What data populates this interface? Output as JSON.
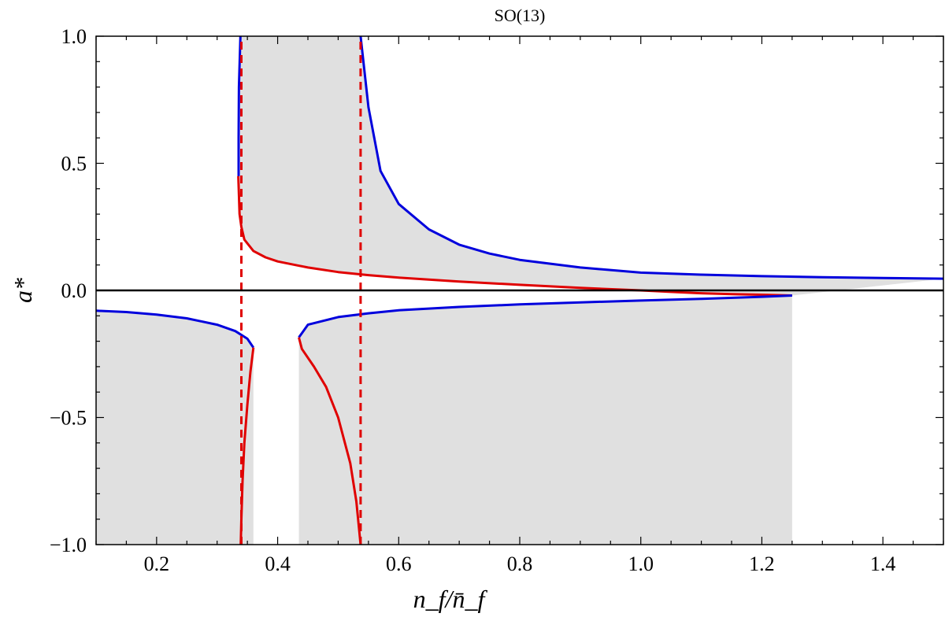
{
  "chart_data": {
    "type": "line",
    "title": "SO(13)",
    "xlabel": "n_f/n̄_f",
    "ylabel": "a*",
    "xlim": [
      0.1,
      1.5
    ],
    "ylim": [
      -1.0,
      1.0
    ],
    "x_ticks": [
      {
        "value": 0.2,
        "label": "0.2"
      },
      {
        "value": 0.4,
        "label": "0.4"
      },
      {
        "value": 0.6,
        "label": "0.6"
      },
      {
        "value": 0.8,
        "label": "0.8"
      },
      {
        "value": 1.0,
        "label": "1.0"
      },
      {
        "value": 1.2,
        "label": "1.2"
      },
      {
        "value": 1.4,
        "label": "1.4"
      }
    ],
    "y_ticks": [
      {
        "value": 1.0,
        "label": "1.0"
      },
      {
        "value": 0.5,
        "label": "0.5"
      },
      {
        "value": 0.0,
        "label": "0.0"
      },
      {
        "value": -0.5,
        "label": "−0.5"
      },
      {
        "value": -1.0,
        "label": "−1.0"
      }
    ],
    "grid": false,
    "colors": {
      "blue": "#0000dd",
      "red": "#e00000",
      "shade": "#e0e0e0"
    },
    "shaded_regions": [
      {
        "name": "upper-band",
        "upper": "blue-upper",
        "lower": "red-upper"
      },
      {
        "name": "lower-left",
        "upper": "blue-lower-left",
        "lower": "frame-bottom"
      },
      {
        "name": "lower-right",
        "upper": "blue-lower-right",
        "lower": "frame-bottom"
      }
    ],
    "series": [
      {
        "id": "blue-upper",
        "color": "blue",
        "style": "solid",
        "points": [
          [
            0.537,
            1.0
          ],
          [
            0.55,
            0.72
          ],
          [
            0.57,
            0.47
          ],
          [
            0.6,
            0.34
          ],
          [
            0.65,
            0.24
          ],
          [
            0.7,
            0.18
          ],
          [
            0.75,
            0.145
          ],
          [
            0.8,
            0.12
          ],
          [
            0.9,
            0.09
          ],
          [
            1.0,
            0.07
          ],
          [
            1.1,
            0.062
          ],
          [
            1.2,
            0.056
          ],
          [
            1.3,
            0.052
          ],
          [
            1.4,
            0.049
          ],
          [
            1.5,
            0.046
          ]
        ]
      },
      {
        "id": "red-upper",
        "color": "red",
        "style": "solid",
        "points": [
          [
            0.335,
            0.45
          ],
          [
            0.337,
            0.3
          ],
          [
            0.34,
            0.25
          ],
          [
            0.345,
            0.2
          ],
          [
            0.36,
            0.155
          ],
          [
            0.38,
            0.13
          ],
          [
            0.4,
            0.114
          ],
          [
            0.45,
            0.09
          ],
          [
            0.5,
            0.072
          ],
          [
            0.55,
            0.06
          ],
          [
            0.6,
            0.05
          ],
          [
            0.7,
            0.035
          ],
          [
            0.8,
            0.022
          ],
          [
            0.9,
            0.01
          ],
          [
            1.0,
            0.0
          ],
          [
            1.05,
            -0.006
          ],
          [
            1.1,
            -0.011
          ],
          [
            1.15,
            -0.015
          ],
          [
            1.2,
            -0.017
          ],
          [
            1.25,
            -0.02
          ]
        ]
      },
      {
        "id": "blue-upper-left",
        "color": "blue",
        "style": "solid",
        "points": [
          [
            0.3385,
            1.0
          ],
          [
            0.336,
            0.8
          ],
          [
            0.3355,
            0.6
          ],
          [
            0.3355,
            0.45
          ]
        ]
      },
      {
        "id": "blue-lower-left",
        "color": "blue",
        "style": "solid",
        "points": [
          [
            0.1,
            -0.08
          ],
          [
            0.15,
            -0.085
          ],
          [
            0.2,
            -0.095
          ],
          [
            0.25,
            -0.11
          ],
          [
            0.3,
            -0.135
          ],
          [
            0.33,
            -0.16
          ],
          [
            0.35,
            -0.19
          ],
          [
            0.36,
            -0.225
          ]
        ]
      },
      {
        "id": "red-lower-left",
        "color": "red",
        "style": "solid",
        "points": [
          [
            0.36,
            -0.225
          ],
          [
            0.355,
            -0.32
          ],
          [
            0.35,
            -0.45
          ],
          [
            0.345,
            -0.6
          ],
          [
            0.342,
            -0.75
          ],
          [
            0.34,
            -0.9
          ],
          [
            0.339,
            -1.0
          ]
        ]
      },
      {
        "id": "blue-lower-right",
        "color": "blue",
        "style": "solid",
        "points": [
          [
            0.435,
            -0.185
          ],
          [
            0.45,
            -0.135
          ],
          [
            0.5,
            -0.105
          ],
          [
            0.55,
            -0.09
          ],
          [
            0.6,
            -0.078
          ],
          [
            0.7,
            -0.065
          ],
          [
            0.8,
            -0.055
          ],
          [
            0.9,
            -0.047
          ],
          [
            1.0,
            -0.04
          ],
          [
            1.1,
            -0.033
          ],
          [
            1.2,
            -0.025
          ],
          [
            1.25,
            -0.02
          ]
        ]
      },
      {
        "id": "red-lower-right",
        "color": "red",
        "style": "solid",
        "points": [
          [
            0.435,
            -0.185
          ],
          [
            0.44,
            -0.23
          ],
          [
            0.46,
            -0.3
          ],
          [
            0.48,
            -0.38
          ],
          [
            0.5,
            -0.5
          ],
          [
            0.52,
            -0.68
          ],
          [
            0.53,
            -0.83
          ],
          [
            0.537,
            -1.0
          ]
        ]
      },
      {
        "id": "red-dashed-1",
        "color": "red",
        "style": "dashed",
        "points": [
          [
            0.34,
            -1.0
          ],
          [
            0.34,
            1.0
          ]
        ]
      },
      {
        "id": "red-dashed-2",
        "color": "red",
        "style": "dashed",
        "points": [
          [
            0.537,
            -1.0
          ],
          [
            0.537,
            1.0
          ]
        ]
      }
    ]
  }
}
